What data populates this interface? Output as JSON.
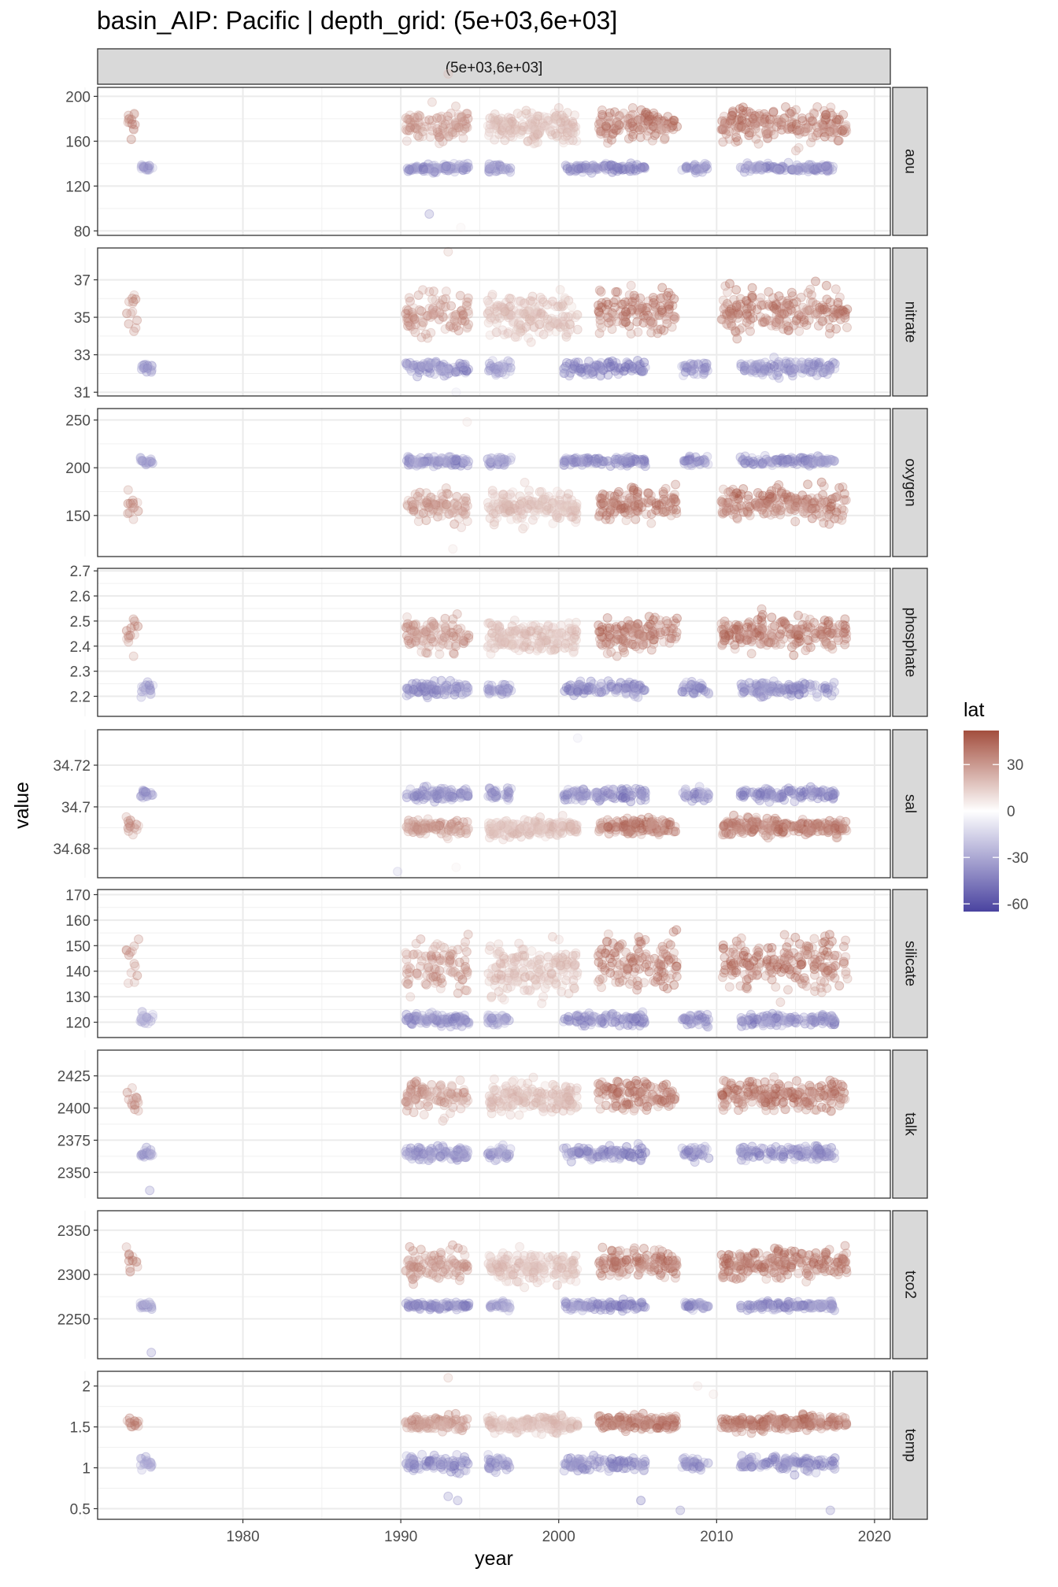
{
  "title": "basin_AIP: Pacific | depth_grid: (5e+03,6e+03]",
  "chart_data": {
    "type": "scatter",
    "column_strip": "(5e+03,6e+03]",
    "xlabel": "year",
    "ylabel": "value",
    "x_ticks": [
      1980,
      1990,
      2000,
      2010,
      2020
    ],
    "xlim": [
      1970.8,
      2021
    ],
    "grid": true,
    "legend": {
      "title": "lat",
      "placement": "right",
      "ticks": [
        30,
        0,
        -30,
        -60
      ],
      "range": [
        -65,
        52
      ],
      "colors": {
        "low": "#4a43a0",
        "mid": "#ffffff",
        "high": "#a34e3e"
      }
    },
    "groups": [
      {
        "lat": 40,
        "years": [
          1972.6,
          1973.4
        ],
        "density": 0.15
      },
      {
        "lat": -40,
        "years": [
          1973.5,
          1974.3
        ],
        "density": 0.3
      },
      {
        "lat": 35,
        "years": [
          1990.3,
          1994.3
        ],
        "density": 0.55
      },
      {
        "lat": -45,
        "years": [
          1990.3,
          1994.3
        ],
        "density": 0.5
      },
      {
        "lat": 22,
        "years": [
          1995.5,
          2001.2
        ],
        "density": 0.7
      },
      {
        "lat": -40,
        "years": [
          1995.5,
          1997
        ],
        "density": 0.4
      },
      {
        "lat": -45,
        "years": [
          2000.3,
          2003.0
        ],
        "density": 0.4
      },
      {
        "lat": 45,
        "years": [
          2002.5,
          2007.5
        ],
        "density": 0.6
      },
      {
        "lat": -50,
        "years": [
          2003.1,
          2005.5
        ],
        "density": 0.4
      },
      {
        "lat": -45,
        "years": [
          2007.8,
          2009.5
        ],
        "density": 0.35
      },
      {
        "lat": 45,
        "years": [
          2010.3,
          2018.3
        ],
        "density": 0.6
      },
      {
        "lat": -45,
        "years": [
          2011.5,
          2017.5
        ],
        "density": 0.45
      }
    ],
    "panels": [
      {
        "name": "aou",
        "ylim": [
          76,
          208
        ],
        "y_ticks": [
          200,
          160,
          120,
          80
        ],
        "bands": [
          {
            "lat": 40,
            "y": 175,
            "sd": 11
          },
          {
            "lat": -45,
            "y": 136,
            "sd": 3
          }
        ],
        "outliers": [
          [
            1991.8,
            95,
            -40
          ],
          [
            1993.8,
            83,
            5
          ],
          [
            1993.0,
            220,
            20
          ]
        ]
      },
      {
        "name": "nitrate",
        "ylim": [
          30.8,
          38.7
        ],
        "y_ticks": [
          37,
          35,
          33,
          31
        ],
        "bands": [
          {
            "lat": 40,
            "y": 35.3,
            "sd": 0.9
          },
          {
            "lat": -45,
            "y": 32.3,
            "sd": 0.35
          }
        ],
        "outliers": [
          [
            1993.5,
            31.0,
            -10
          ],
          [
            1993.0,
            38.5,
            20
          ]
        ]
      },
      {
        "name": "oxygen",
        "ylim": [
          107,
          262
        ],
        "y_ticks": [
          250,
          200,
          150
        ],
        "bands": [
          {
            "lat": 40,
            "y": 162,
            "sd": 13
          },
          {
            "lat": -45,
            "y": 207,
            "sd": 4
          }
        ],
        "outliers": [
          [
            1994.2,
            248,
            10
          ],
          [
            1993.3,
            115,
            10
          ]
        ]
      },
      {
        "name": "phosphate",
        "ylim": [
          2.12,
          2.71
        ],
        "y_ticks": [
          2.7,
          2.6,
          2.5,
          2.4,
          2.3,
          2.2
        ],
        "bands": [
          {
            "lat": 40,
            "y": 2.45,
            "sd": 0.05
          },
          {
            "lat": -45,
            "y": 2.23,
            "sd": 0.025
          }
        ],
        "outliers": []
      },
      {
        "name": "sal",
        "ylim": [
          34.666,
          34.737
        ],
        "y_ticks": [
          34.72,
          34.7,
          34.68
        ],
        "bands": [
          {
            "lat": 40,
            "y": 34.6905,
            "sd": 0.003
          },
          {
            "lat": -45,
            "y": 34.706,
            "sd": 0.0025
          }
        ],
        "outliers": [
          [
            2001.2,
            34.733,
            -10
          ],
          [
            1989.8,
            34.669,
            -20
          ],
          [
            1993.5,
            34.671,
            5
          ]
        ]
      },
      {
        "name": "silicate",
        "ylim": [
          114,
          172
        ],
        "y_ticks": [
          170,
          160,
          150,
          140,
          130,
          120
        ],
        "bands": [
          {
            "lat": 40,
            "y": 143,
            "sd": 8
          },
          {
            "lat": -45,
            "y": 121,
            "sd": 2
          }
        ],
        "outliers": []
      },
      {
        "name": "talk",
        "ylim": [
          2330,
          2445
        ],
        "y_ticks": [
          2425,
          2400,
          2375,
          2350
        ],
        "bands": [
          {
            "lat": 40,
            "y": 2410,
            "sd": 9
          },
          {
            "lat": -45,
            "y": 2365,
            "sd": 5
          }
        ],
        "outliers": [
          [
            1974.1,
            2336,
            -40
          ]
        ]
      },
      {
        "name": "tco2",
        "ylim": [
          2205,
          2372
        ],
        "y_ticks": [
          2350,
          2300,
          2250
        ],
        "bands": [
          {
            "lat": 40,
            "y": 2312,
            "sd": 13
          },
          {
            "lat": -45,
            "y": 2265,
            "sd": 4
          }
        ],
        "outliers": [
          [
            1974.2,
            2212,
            -40
          ]
        ]
      },
      {
        "name": "temp",
        "ylim": [
          0.37,
          2.18
        ],
        "y_ticks": [
          2.0,
          1.5,
          1.0,
          0.5
        ],
        "bands": [
          {
            "lat": 40,
            "y": 1.55,
            "sd": 0.07
          },
          {
            "lat": -45,
            "y": 1.05,
            "sd": 0.08
          }
        ],
        "outliers": [
          [
            1993.0,
            0.65,
            -40
          ],
          [
            1993.6,
            0.6,
            -40
          ],
          [
            2005.2,
            0.6,
            -50
          ],
          [
            2007.7,
            0.48,
            -40
          ],
          [
            2017.2,
            0.48,
            -40
          ],
          [
            2008.8,
            2.0,
            10
          ],
          [
            2009.8,
            1.9,
            10
          ],
          [
            1993.0,
            2.1,
            20
          ]
        ]
      }
    ]
  }
}
